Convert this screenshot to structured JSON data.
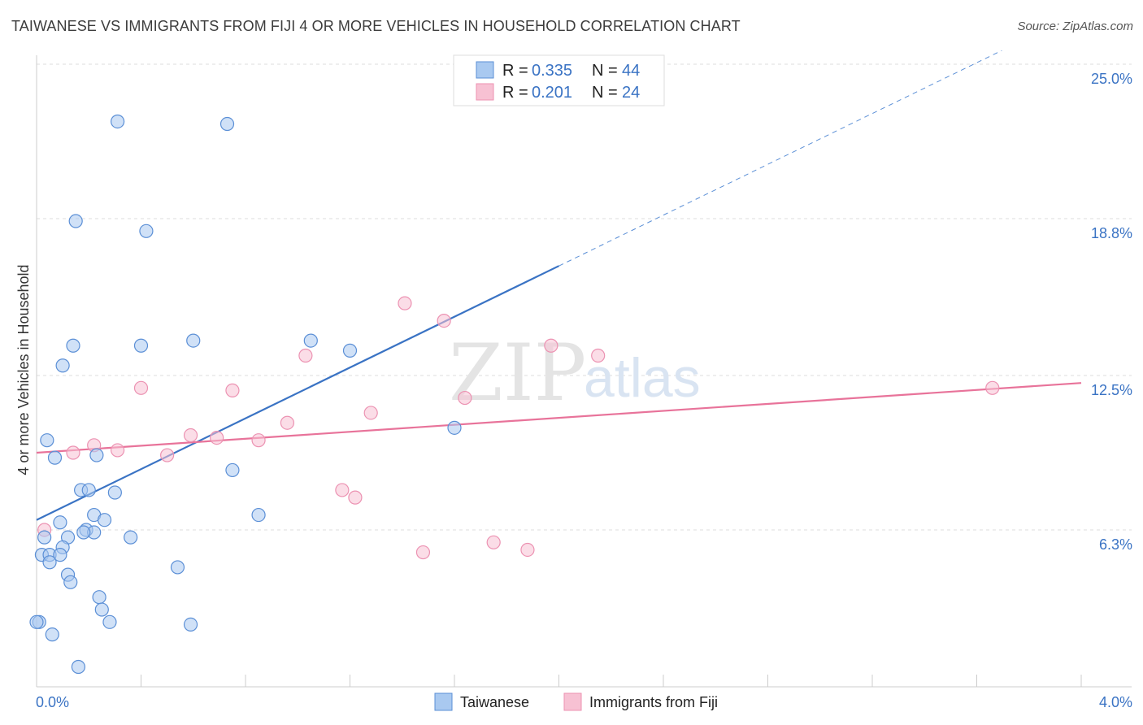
{
  "title": "TAIWANESE VS IMMIGRANTS FROM FIJI 4 OR MORE VEHICLES IN HOUSEHOLD CORRELATION CHART",
  "source": "Source: ZipAtlas.com",
  "watermark": {
    "zip": "ZIP",
    "atlas": "atlas"
  },
  "colors": {
    "blue": "#3a73c4",
    "blue_fill": "#a9c9f0",
    "blue_stroke": "#5b8fd6",
    "pink": "#e8739a",
    "pink_fill": "#f7c1d3",
    "pink_stroke": "#ec92b2",
    "grid": "#dcdcdc"
  },
  "legend": {
    "rows": [
      {
        "r_label": "R = ",
        "r_value": "0.335",
        "n_label": "N = ",
        "n_value": "44",
        "series": "Taiwanese"
      },
      {
        "r_label": "R = ",
        "r_value": "0.201",
        "n_label": "N = ",
        "n_value": "24",
        "series": "Immigrants from Fiji"
      }
    ]
  },
  "bottom_legend": [
    "Taiwanese",
    "Immigrants from Fiji"
  ],
  "chart_data": {
    "type": "scatter",
    "title": "TAIWANESE VS IMMIGRANTS FROM FIJI 4 OR MORE VEHICLES IN HOUSEHOLD CORRELATION CHART",
    "xlabel": "",
    "ylabel": "4 or more Vehicles in Household",
    "xlim": [
      0.0,
      4.0
    ],
    "ylim": [
      0.0,
      25.0
    ],
    "x_tick_labels": [
      "0.0%",
      "4.0%"
    ],
    "y_ticks": [
      6.3,
      12.5,
      18.8,
      25.0
    ],
    "y_tick_labels": [
      "6.3%",
      "12.5%",
      "18.8%",
      "25.0%"
    ],
    "grid": true,
    "series": [
      {
        "name": "Taiwanese",
        "color": "#3a73c4",
        "trend": {
          "x0": 0.0,
          "y0": 6.7,
          "x1": 2.0,
          "y1": 16.9,
          "dashed_to_x": 4.0,
          "dashed_to_y": 27.1
        },
        "points": [
          [
            0.31,
            22.7
          ],
          [
            0.73,
            22.6
          ],
          [
            0.15,
            18.7
          ],
          [
            0.42,
            18.3
          ],
          [
            0.14,
            13.7
          ],
          [
            0.4,
            13.7
          ],
          [
            0.6,
            13.9
          ],
          [
            1.05,
            13.9
          ],
          [
            1.2,
            13.5
          ],
          [
            0.1,
            12.9
          ],
          [
            0.04,
            9.9
          ],
          [
            0.07,
            9.2
          ],
          [
            0.23,
            9.3
          ],
          [
            0.75,
            8.7
          ],
          [
            0.17,
            7.9
          ],
          [
            0.2,
            7.9
          ],
          [
            0.3,
            7.8
          ],
          [
            0.22,
            6.9
          ],
          [
            0.26,
            6.7
          ],
          [
            0.85,
            6.9
          ],
          [
            0.09,
            6.6
          ],
          [
            0.19,
            6.3
          ],
          [
            0.22,
            6.2
          ],
          [
            0.03,
            6.0
          ],
          [
            0.12,
            6.0
          ],
          [
            0.36,
            6.0
          ],
          [
            0.18,
            6.2
          ],
          [
            0.1,
            5.6
          ],
          [
            0.02,
            5.3
          ],
          [
            0.05,
            5.3
          ],
          [
            0.09,
            5.3
          ],
          [
            0.05,
            5.0
          ],
          [
            0.54,
            4.8
          ],
          [
            0.12,
            4.5
          ],
          [
            0.13,
            4.2
          ],
          [
            0.24,
            3.6
          ],
          [
            0.25,
            3.1
          ],
          [
            0.28,
            2.6
          ],
          [
            0.01,
            2.6
          ],
          [
            0.59,
            2.5
          ],
          [
            0.06,
            2.1
          ],
          [
            0.16,
            0.8
          ],
          [
            0.0,
            2.6
          ],
          [
            1.6,
            10.4
          ]
        ]
      },
      {
        "name": "Immigrants from Fiji",
        "color": "#e8739a",
        "trend": {
          "x0": 0.0,
          "y0": 9.4,
          "x1": 4.0,
          "y1": 12.2
        },
        "points": [
          [
            0.03,
            6.3
          ],
          [
            0.14,
            9.4
          ],
          [
            0.22,
            9.7
          ],
          [
            0.31,
            9.5
          ],
          [
            0.4,
            12.0
          ],
          [
            0.5,
            9.3
          ],
          [
            0.59,
            10.1
          ],
          [
            0.69,
            10.0
          ],
          [
            0.75,
            11.9
          ],
          [
            0.85,
            9.9
          ],
          [
            0.96,
            10.6
          ],
          [
            1.03,
            13.3
          ],
          [
            1.17,
            7.9
          ],
          [
            1.22,
            7.6
          ],
          [
            1.28,
            11.0
          ],
          [
            1.41,
            15.4
          ],
          [
            1.48,
            5.4
          ],
          [
            1.56,
            14.7
          ],
          [
            1.64,
            11.6
          ],
          [
            1.75,
            5.8
          ],
          [
            1.88,
            5.5
          ],
          [
            1.97,
            13.7
          ],
          [
            2.15,
            13.3
          ],
          [
            3.66,
            12.0
          ]
        ]
      }
    ]
  }
}
